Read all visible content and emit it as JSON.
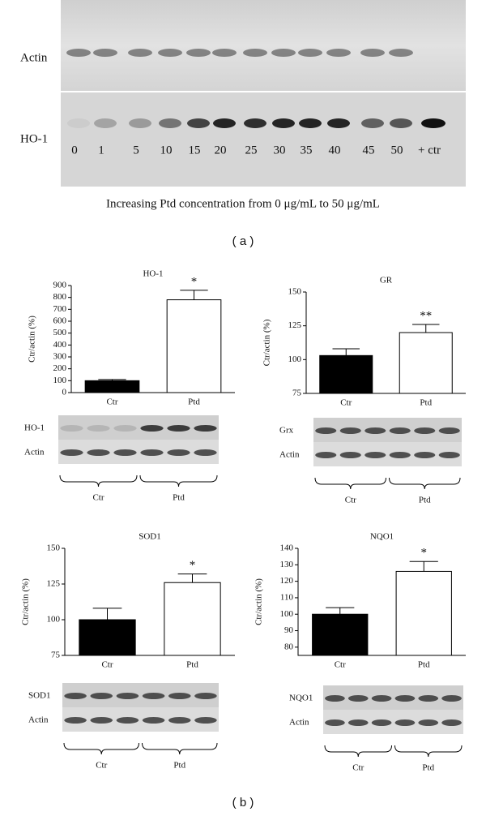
{
  "panel_a": {
    "rows": [
      "Actin",
      "HO-1"
    ],
    "lanes": [
      "0",
      "1",
      "5",
      "10",
      "15",
      "20",
      "25",
      "30",
      "35",
      "40",
      "45",
      "50",
      "+ ctr"
    ],
    "caption": "Increasing Ptd concentration from 0 μg/mL to 50 μg/mL",
    "label": "( a )"
  },
  "panel_b_label": "( b )",
  "chart_data": [
    {
      "type": "bar",
      "title": "HO-1",
      "y_label": "Ctr/actin (%)",
      "categories": [
        "Ctr",
        "Ptd"
      ],
      "values": [
        100,
        780
      ],
      "errors": [
        10,
        80
      ],
      "colors": [
        "#000000",
        "#ffffff"
      ],
      "significance": [
        null,
        "*"
      ],
      "ylim": [
        0,
        900
      ],
      "yticks": [
        0,
        100,
        200,
        300,
        400,
        500,
        600,
        700,
        800,
        900
      ],
      "blot": {
        "rows": [
          "HO-1",
          "Actin"
        ],
        "groups": [
          "Ctr",
          "Ptd"
        ]
      }
    },
    {
      "type": "bar",
      "title": "GR",
      "y_label": "Ctr/actin (%)",
      "categories": [
        "Ctr",
        "Ptd"
      ],
      "values": [
        103,
        120
      ],
      "errors": [
        5,
        6
      ],
      "colors": [
        "#000000",
        "#ffffff"
      ],
      "significance": [
        null,
        "**"
      ],
      "ylim": [
        75,
        150
      ],
      "yticks": [
        75,
        100,
        125,
        150
      ],
      "blot": {
        "rows": [
          "Grx",
          "Actin"
        ],
        "groups": [
          "Ctr",
          "Ptd"
        ]
      }
    },
    {
      "type": "bar",
      "title": "SOD1",
      "y_label": "Ctr/actin (%)",
      "categories": [
        "Ctr",
        "Ptd"
      ],
      "values": [
        100,
        126
      ],
      "errors": [
        8,
        6
      ],
      "colors": [
        "#000000",
        "#ffffff"
      ],
      "significance": [
        null,
        "*"
      ],
      "ylim": [
        75,
        150
      ],
      "yticks": [
        75,
        100,
        125,
        150
      ],
      "blot": {
        "rows": [
          "SOD1",
          "Actin"
        ],
        "groups": [
          "Ctr",
          "Ptd"
        ]
      }
    },
    {
      "type": "bar",
      "title": "NQO1",
      "y_label": "Ctr/actin (%)",
      "categories": [
        "Ctr",
        "Ptd"
      ],
      "values": [
        100,
        126
      ],
      "errors": [
        4,
        6
      ],
      "colors": [
        "#000000",
        "#ffffff"
      ],
      "significance": [
        null,
        "*"
      ],
      "ylim": [
        75,
        140
      ],
      "yticks": [
        80,
        90,
        100,
        110,
        120,
        130,
        140
      ],
      "blot": {
        "rows": [
          "NQO1",
          "Actin"
        ],
        "groups": [
          "Ctr",
          "Ptd"
        ]
      }
    }
  ]
}
